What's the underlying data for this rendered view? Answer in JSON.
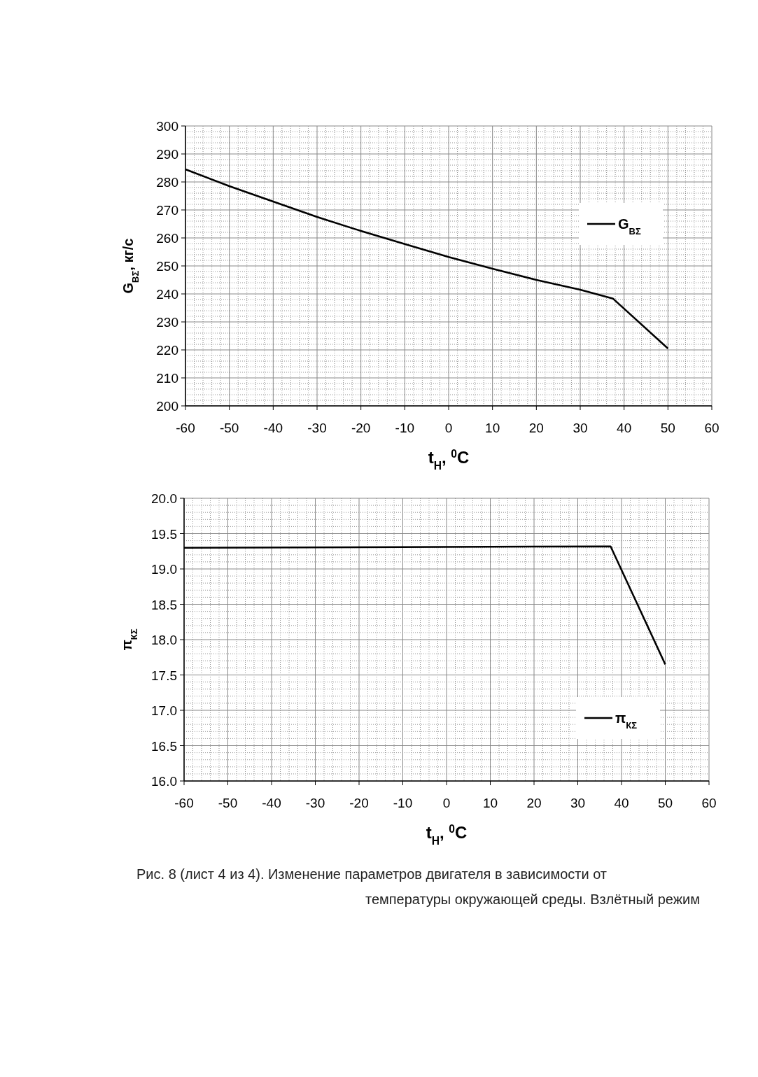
{
  "chart_data": [
    {
      "type": "line",
      "ylabel": "G$_{ВΣ}$, кг/с",
      "xlabel": "t$_{Н}$, $^{0}$С",
      "xlim": [
        -60,
        60
      ],
      "xticks": [
        -60,
        -50,
        -40,
        -30,
        -20,
        -10,
        0,
        10,
        20,
        30,
        40,
        50,
        60
      ],
      "ylim": [
        200,
        300
      ],
      "yticks": [
        200,
        210,
        220,
        230,
        240,
        250,
        260,
        270,
        280,
        290,
        300
      ],
      "grid": true,
      "legend": "right",
      "line_style": "solid",
      "series": [
        {
          "name": "G$_{ВΣ}$",
          "color": "#000000",
          "x": [
            -60,
            -50,
            -40,
            -30,
            -20,
            -10,
            0,
            10,
            20,
            30,
            37.5,
            50
          ],
          "values": [
            284.5,
            278.5,
            273,
            267.5,
            262.5,
            257.8,
            253.2,
            249,
            245,
            241.5,
            238.3,
            220.5
          ]
        }
      ]
    },
    {
      "type": "line",
      "ylabel": "π$_{КΣ}$",
      "xlabel": "t$_{Н}$, $^{0}$С",
      "xlim": [
        -60,
        60
      ],
      "xticks": [
        -60,
        -50,
        -40,
        -30,
        -20,
        -10,
        0,
        10,
        20,
        30,
        40,
        50,
        60
      ],
      "ylim": [
        16,
        20
      ],
      "yticks": [
        {
          "value": 16,
          "label": "16.0"
        },
        {
          "value": 16.5,
          "label": "16.5"
        },
        {
          "value": 17,
          "label": "17.0"
        },
        {
          "value": 17.5,
          "label": "17.5"
        },
        {
          "value": 18,
          "label": "18.0"
        },
        {
          "value": 18.5,
          "label": "18.5"
        },
        {
          "value": 19,
          "label": "19.0"
        },
        {
          "value": 19.5,
          "label": "19.5"
        },
        {
          "value": 20,
          "label": "20.0"
        }
      ],
      "grid": true,
      "legend": "bottom right",
      "line_style": "solid",
      "series": [
        {
          "name": "π$_{КΣ}$",
          "color": "#000000",
          "x": [
            -60,
            37.5,
            50
          ],
          "values": [
            19.3,
            19.32,
            17.65
          ]
        }
      ],
      "annotations": [
        "Рис. 8 (лист 4 из 4). Изменение параметров двигателя в зависимости от",
        "температуры окружающей среды. Взлётный режим"
      ]
    }
  ]
}
